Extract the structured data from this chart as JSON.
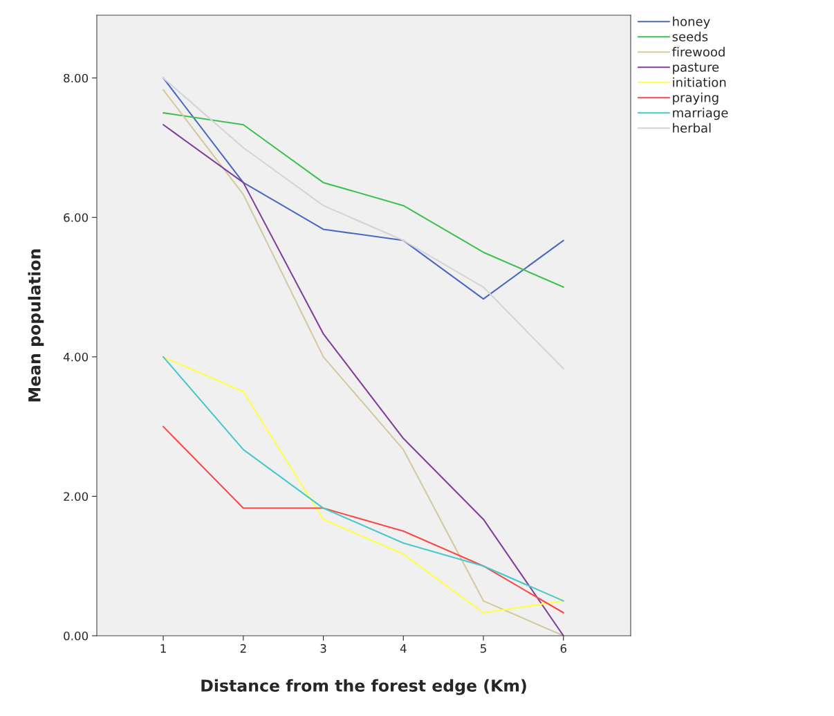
{
  "chart_data": {
    "type": "line",
    "xlabel": "Distance from the forest edge (Km)",
    "ylabel": "Mean population",
    "x": [
      1,
      2,
      3,
      4,
      5,
      6
    ],
    "series": [
      {
        "name": "honey",
        "color": "#4a68c0",
        "values": [
          8.0,
          6.5,
          5.83,
          5.67,
          4.83,
          5.67
        ]
      },
      {
        "name": "seeds",
        "color": "#3fbf4f",
        "values": [
          7.5,
          7.33,
          6.5,
          6.17,
          5.5,
          5.0
        ]
      },
      {
        "name": "firewood",
        "color": "#d2c9a0",
        "values": [
          7.83,
          6.33,
          4.0,
          2.67,
          0.5,
          0.0
        ]
      },
      {
        "name": "pasture",
        "color": "#7f3f98",
        "values": [
          7.33,
          6.5,
          4.33,
          2.83,
          1.67,
          0.0
        ]
      },
      {
        "name": "initiation",
        "color": "#ffff4a",
        "values": [
          4.0,
          3.5,
          1.67,
          1.17,
          0.33,
          0.5
        ]
      },
      {
        "name": "praying",
        "color": "#f84848",
        "values": [
          3.0,
          1.83,
          1.83,
          1.5,
          1.0,
          0.33
        ]
      },
      {
        "name": "marriage",
        "color": "#48c8c8",
        "values": [
          4.0,
          2.67,
          1.83,
          1.33,
          1.0,
          0.5
        ]
      },
      {
        "name": "herbal",
        "color": "#d4d4d4",
        "values": [
          8.0,
          7.0,
          6.17,
          5.67,
          5.0,
          3.83
        ]
      }
    ],
    "xlim": [
      0.17,
      6.84
    ],
    "ylim": [
      0,
      8.9
    ],
    "xticks": [
      1,
      2,
      3,
      4,
      5,
      6
    ],
    "yticks": [
      {
        "value": 0,
        "label": "0.00"
      },
      {
        "value": 2,
        "label": "2.00"
      },
      {
        "value": 4,
        "label": "4.00"
      },
      {
        "value": 6,
        "label": "6.00"
      },
      {
        "value": 8,
        "label": "8.00"
      }
    ],
    "grid": false,
    "legend": "top right",
    "marker": "none",
    "line_style": "solid"
  }
}
